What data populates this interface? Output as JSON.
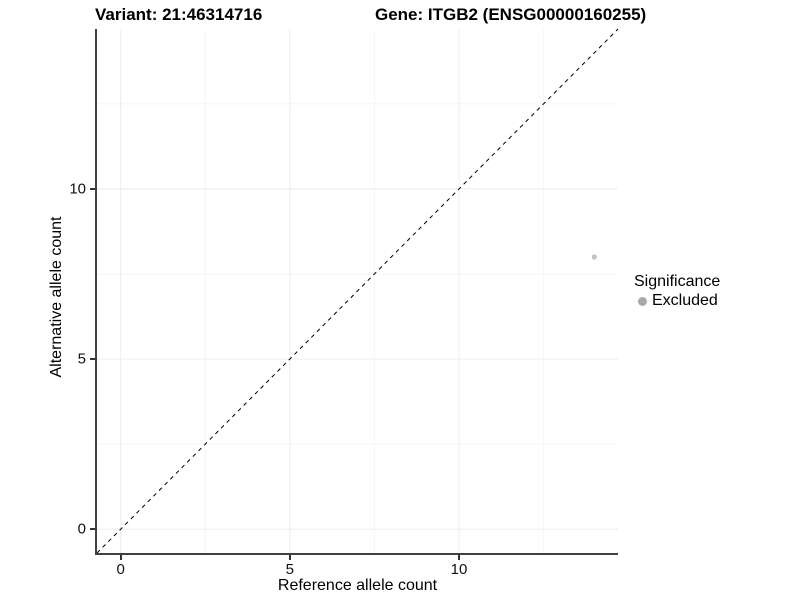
{
  "titles": {
    "variant": "Variant: 21:46314716",
    "gene": "Gene: ITGB2 (ENSG00000160255)"
  },
  "axes": {
    "x": {
      "label": "Reference allele count"
    },
    "y": {
      "label": "Alternative allele count"
    }
  },
  "legend": {
    "title": "Significance",
    "items": [
      {
        "label": "Excluded",
        "key_color": "#a8a8a8"
      }
    ]
  },
  "colors": {
    "background": "#ffffff",
    "axis_line": "#404040",
    "tick_mark": "#333333",
    "grid_major": "#ececec",
    "grid_minor": "#f5f5f5",
    "reference_line": "#000000",
    "point": "#c2c2c2"
  },
  "chart_data": {
    "type": "scatter",
    "title": "Variant: 21:46314716",
    "subtitle": "Gene: ITGB2 (ENSG00000160255)",
    "xlabel": "Reference allele count",
    "ylabel": "Alternative allele count",
    "xlim": [
      -0.7,
      14.7
    ],
    "ylim": [
      -0.7,
      14.7
    ],
    "x_breaks": [
      0,
      5,
      10
    ],
    "y_breaks": [
      0,
      5,
      10
    ],
    "x_minor_breaks": [
      2.5,
      7.5,
      12.5
    ],
    "y_minor_breaks": [
      2.5,
      7.5,
      12.5
    ],
    "grid": true,
    "legend_position": "right",
    "series": [
      {
        "name": "Excluded",
        "color": "#c2c2c2",
        "points": [
          {
            "x": 14,
            "y": 8
          }
        ]
      }
    ],
    "reference_line": {
      "kind": "identity",
      "slope": 1,
      "intercept": 0,
      "style": "dashed",
      "color": "#000000"
    }
  }
}
